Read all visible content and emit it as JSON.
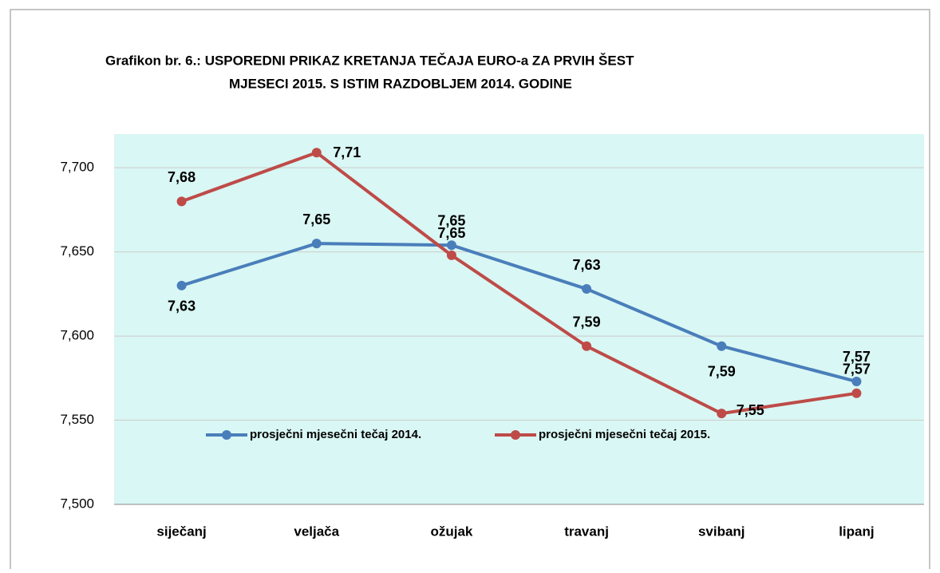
{
  "chart_data": {
    "type": "line",
    "title": [
      "Grafikon br.  6.:  USPOREDNI PRIKAZ KRETANJA TEČAJA EURO-a ZA PRVIH ŠEST",
      "MJESECI 2015. S  ISTIM RAZDOBLJEM 2014. GODINE"
    ],
    "categories": [
      "siječanj",
      "veljača",
      "ožujak",
      "travanj",
      "svibanj",
      "lipanj"
    ],
    "series": [
      {
        "name": "prosječni mjesečni tečaj 2014.",
        "color": "#4a7ebb",
        "values": [
          7.63,
          7.655,
          7.654,
          7.628,
          7.594,
          7.573
        ],
        "value_labels": [
          "7,63",
          "7,65",
          "7,65",
          "7,63",
          "7,59",
          "7,57"
        ]
      },
      {
        "name": "prosječni mjesečni tečaj 2015.",
        "color": "#be4b48",
        "values": [
          7.68,
          7.709,
          7.648,
          7.594,
          7.554,
          7.566
        ],
        "value_labels": [
          "7,68",
          "7,71",
          "7,65",
          "7,59",
          "7,55",
          "7,57"
        ]
      }
    ],
    "ylim": [
      7.5,
      7.72
    ],
    "yticks": [
      {
        "value": 7.5,
        "label": "7,500"
      },
      {
        "value": 7.55,
        "label": "7,550"
      },
      {
        "value": 7.6,
        "label": "7,600"
      },
      {
        "value": 7.65,
        "label": "7,650"
      },
      {
        "value": 7.7,
        "label": "7,700"
      }
    ],
    "grid": true,
    "background": "#d9f7f4"
  }
}
